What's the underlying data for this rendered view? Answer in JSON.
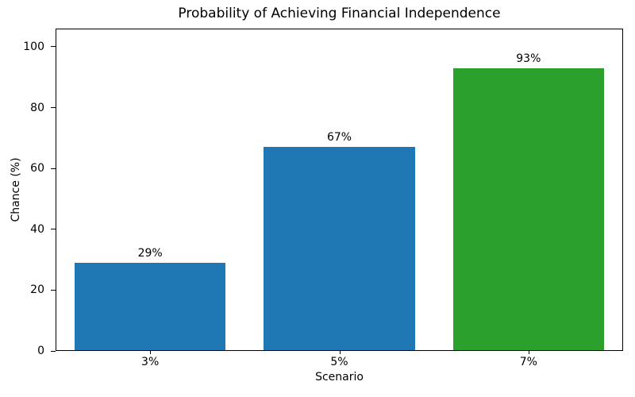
{
  "chart_data": {
    "type": "bar",
    "title": "Probability of Achieving Financial Independence",
    "xlabel": "Scenario",
    "ylabel": "Chance (%)",
    "categories": [
      "3%",
      "5%",
      "7%"
    ],
    "values": [
      29,
      67,
      93
    ],
    "bar_labels": [
      "29%",
      "67%",
      "93%"
    ],
    "bar_colors": [
      "#1f77b4",
      "#1f77b4",
      "#2ca02c"
    ],
    "ylim": [
      0,
      106
    ],
    "yticks": [
      0,
      20,
      40,
      60,
      80,
      100
    ],
    "bar_width_fraction": 0.8,
    "grid": false,
    "legend_position": "none",
    "spine_color": "#000000",
    "background_color": "#ffffff",
    "text_color": "#000000"
  }
}
